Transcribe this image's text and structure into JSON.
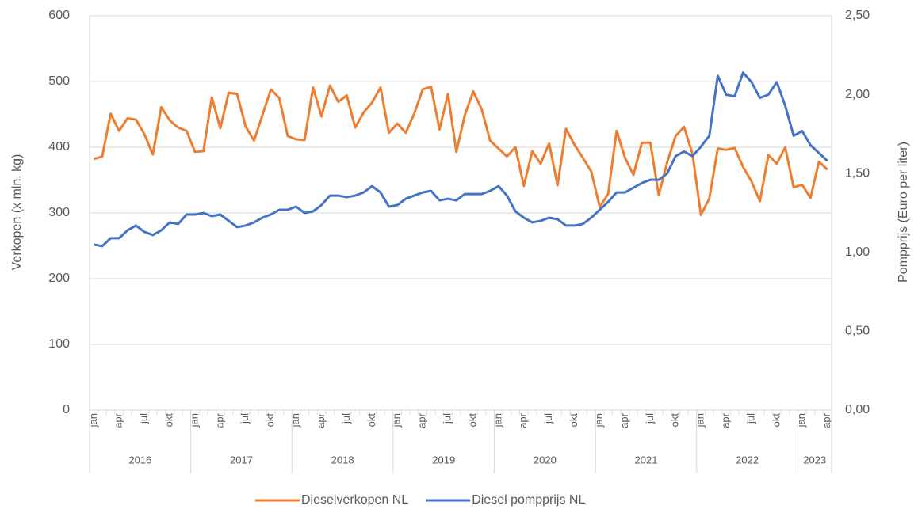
{
  "chart_data": {
    "type": "line",
    "y_label": "Verkopen (x mln. kg)",
    "y2_label": "Pompprijs (Euro per liter)",
    "categories": [
      "jan",
      null,
      null,
      "apr",
      null,
      null,
      "jul",
      null,
      null,
      "okt",
      null,
      null,
      "jan",
      null,
      null,
      "apr",
      null,
      null,
      "jul",
      null,
      null,
      "okt",
      null,
      null,
      "jan",
      null,
      null,
      "apr",
      null,
      null,
      "jul",
      null,
      null,
      "okt",
      null,
      null,
      "jan",
      null,
      null,
      "apr",
      null,
      null,
      "jul",
      null,
      null,
      "okt",
      null,
      null,
      "jan",
      null,
      null,
      "apr",
      null,
      null,
      "jul",
      null,
      null,
      "okt",
      null,
      null,
      "jan",
      null,
      null,
      "apr",
      null,
      null,
      "jul",
      null,
      null,
      "okt",
      null,
      null,
      "jan",
      null,
      null,
      "apr",
      null,
      null,
      "jul",
      null,
      null,
      "okt",
      null,
      null,
      "jan",
      null,
      null,
      "apr"
    ],
    "years": [
      "2016",
      "2017",
      "2018",
      "2019",
      "2020",
      "2021",
      "2022",
      "2023"
    ],
    "series": [
      {
        "name": "Dieselverkopen NL",
        "color": "#ed7d31",
        "values": [
          382,
          386,
          451,
          425,
          444,
          442,
          420,
          389,
          461,
          441,
          430,
          425,
          393,
          394,
          476,
          429,
          483,
          481,
          432,
          410,
          449,
          488,
          475,
          417,
          412,
          411,
          491,
          447,
          494,
          469,
          479,
          430,
          453,
          468,
          491,
          422,
          436,
          422,
          451,
          488,
          492,
          427,
          481,
          393,
          449,
          485,
          458,
          410,
          398,
          386,
          400,
          341,
          394,
          375,
          406,
          342,
          428,
          404,
          384,
          363,
          309,
          329,
          425,
          384,
          358,
          407,
          407,
          327,
          377,
          417,
          431,
          390,
          297,
          322,
          398,
          396,
          399,
          370,
          348,
          318,
          388,
          375,
          400,
          339,
          343,
          323,
          378,
          366
        ]
      },
      {
        "name": "Diesel pompprijs NL",
        "color": "#4472c4",
        "axis": "y2",
        "values": [
          1.05,
          1.04,
          1.09,
          1.09,
          1.14,
          1.17,
          1.13,
          1.11,
          1.14,
          1.19,
          1.18,
          1.24,
          1.24,
          1.25,
          1.23,
          1.24,
          1.2,
          1.16,
          1.17,
          1.19,
          1.22,
          1.24,
          1.27,
          1.27,
          1.29,
          1.25,
          1.26,
          1.3,
          1.36,
          1.36,
          1.35,
          1.36,
          1.38,
          1.42,
          1.38,
          1.29,
          1.3,
          1.34,
          1.36,
          1.38,
          1.39,
          1.33,
          1.34,
          1.33,
          1.37,
          1.37,
          1.37,
          1.39,
          1.42,
          1.36,
          1.26,
          1.22,
          1.19,
          1.2,
          1.22,
          1.21,
          1.17,
          1.17,
          1.18,
          1.22,
          1.27,
          1.32,
          1.38,
          1.38,
          1.41,
          1.44,
          1.46,
          1.46,
          1.5,
          1.61,
          1.64,
          1.61,
          1.67,
          1.74,
          2.12,
          2.0,
          1.99,
          2.14,
          2.08,
          1.98,
          2.0,
          2.08,
          1.93,
          1.74,
          1.77,
          1.68,
          1.63,
          1.58
        ]
      }
    ],
    "ylim": [
      0,
      600
    ],
    "yticks": [
      0,
      100,
      200,
      300,
      400,
      500,
      600
    ],
    "y2lim": [
      0,
      2.5
    ],
    "y2ticks": [
      {
        "value": 0,
        "label": "0,00"
      },
      {
        "value": 0.5,
        "label": "0,50"
      },
      {
        "value": 1,
        "label": "1,00"
      },
      {
        "value": 1.5,
        "label": "1,50"
      },
      {
        "value": 2,
        "label": "2,00"
      },
      {
        "value": 2.5,
        "label": "2,50"
      }
    ],
    "grid": true,
    "legend": "bottom"
  }
}
